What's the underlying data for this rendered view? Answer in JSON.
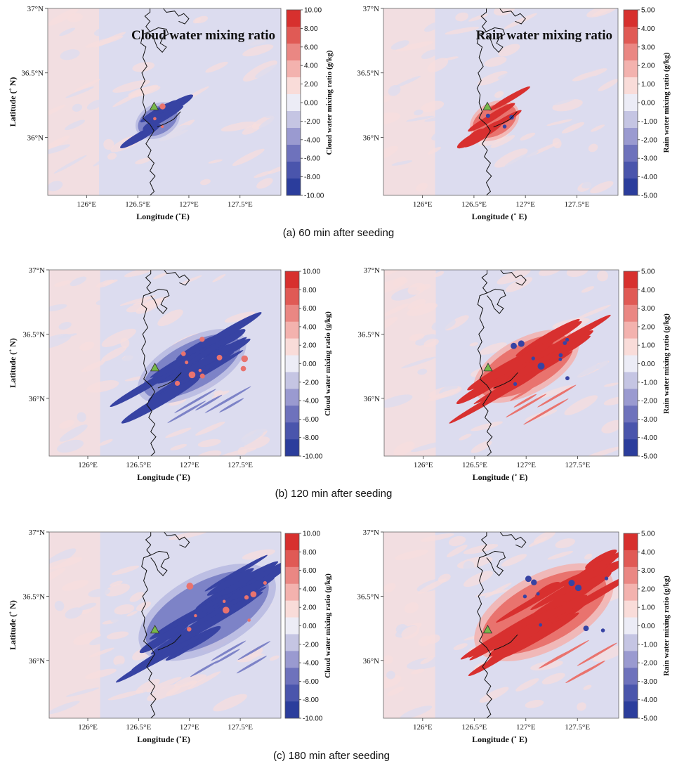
{
  "chart_data": [
    {
      "type": "heatmap",
      "panel": "a-left",
      "title": "Cloud water mixing ratio",
      "xlabel": "Longitude (˚E)",
      "ylabel": "Latitude (˚ N)",
      "colorbar_label": "Cloud water mixing ratio (g/kg)",
      "xlim": [
        125.62,
        127.9
      ],
      "ylim": [
        35.55,
        37.0
      ],
      "x_ticks": [
        126.0,
        126.5,
        127.0,
        127.5
      ],
      "x_tick_labels": [
        "126°E",
        "126.5°E",
        "127°E",
        "127.5°E"
      ],
      "y_ticks": [
        36.0,
        36.5,
        37.0
      ],
      "y_tick_labels": [
        "36°N",
        "36.5°N",
        "37°N"
      ],
      "colorbar_levels": [
        "10.00",
        "8.00",
        "6.00",
        "4.00",
        "2.00",
        "0.00",
        "-2.00",
        "-4.00",
        "-6.00",
        "-8.00",
        "-10.00"
      ],
      "seeding_site": {
        "lon": 126.66,
        "lat": 36.24
      },
      "anomaly_regions": [
        {
          "sign": "negative",
          "value": -8.0,
          "lon": [
            126.47,
            126.92
          ],
          "lat": [
            35.92,
            36.34
          ]
        }
      ]
    },
    {
      "type": "heatmap",
      "panel": "a-right",
      "title": "Rain water mixing ratio",
      "xlabel": "Longitude (˚ E)",
      "ylabel": "",
      "colorbar_label": "Rain water mixing ratio (g/kg)",
      "xlim": [
        125.62,
        127.9
      ],
      "ylim": [
        35.55,
        37.0
      ],
      "x_ticks": [
        126.0,
        126.5,
        127.0,
        127.5
      ],
      "x_tick_labels": [
        "126°E",
        "126.5°E",
        "127°E",
        "127.5°E"
      ],
      "y_ticks": [
        36.0,
        36.5,
        37.0
      ],
      "y_tick_labels": [
        "36°N",
        "36.5°N",
        "37°N"
      ],
      "colorbar_levels": [
        "5.00",
        "4.00",
        "3.00",
        "2.00",
        "1.00",
        "0.00",
        "-1.00",
        "-2.00",
        "-3.00",
        "-4.00",
        "-5.00"
      ],
      "seeding_site": {
        "lon": 126.63,
        "lat": 36.24
      },
      "anomaly_regions": [
        {
          "sign": "positive",
          "value": 4.0,
          "lon": [
            126.45,
            126.95
          ],
          "lat": [
            35.9,
            36.36
          ]
        }
      ]
    },
    {
      "type": "heatmap",
      "panel": "b-left",
      "title": "",
      "xlabel": "Longitude (˚E)",
      "ylabel": "Latitude (˚ N)",
      "colorbar_label": "Cloud water mixing ratio (g/kg)",
      "xlim": [
        125.62,
        127.9
      ],
      "ylim": [
        35.55,
        37.0
      ],
      "x_ticks": [
        126.0,
        126.5,
        127.0,
        127.5
      ],
      "x_tick_labels": [
        "126°E",
        "126.5°E",
        "127°E",
        "127.5°E"
      ],
      "y_ticks": [
        36.0,
        36.5,
        37.0
      ],
      "y_tick_labels": [
        "36°N",
        "36.5°N",
        "37°N"
      ],
      "colorbar_levels": [
        "10.00",
        "8.00",
        "6.00",
        "4.00",
        "2.00",
        "0.00",
        "-2.00",
        "-4.00",
        "-6.00",
        "-8.00",
        "-10.00"
      ],
      "seeding_site": {
        "lon": 126.66,
        "lat": 36.24
      },
      "anomaly_regions": [
        {
          "sign": "negative",
          "value": -8.0,
          "lon": [
            126.45,
            127.6
          ],
          "lat": [
            35.9,
            36.6
          ]
        }
      ]
    },
    {
      "type": "heatmap",
      "panel": "b-right",
      "title": "",
      "xlabel": "Longitude (˚ E)",
      "ylabel": "",
      "colorbar_label": "Rain water mixing ratio (g/kg)",
      "xlim": [
        125.62,
        127.9
      ],
      "ylim": [
        35.55,
        37.0
      ],
      "x_ticks": [
        126.0,
        126.5,
        127.0,
        127.5
      ],
      "x_tick_labels": [
        "126°E",
        "126.5°E",
        "127°E",
        "127.5°E"
      ],
      "y_ticks": [
        36.0,
        36.5,
        37.0
      ],
      "y_tick_labels": [
        "36°N",
        "36.5°N",
        "37°N"
      ],
      "colorbar_levels": [
        "5.00",
        "4.00",
        "3.00",
        "2.00",
        "1.00",
        "0.00",
        "-1.00",
        "-2.00",
        "-3.00",
        "-4.00",
        "-5.00"
      ],
      "seeding_site": {
        "lon": 126.63,
        "lat": 36.24
      },
      "anomaly_regions": [
        {
          "sign": "positive",
          "value": 4.0,
          "lon": [
            126.45,
            127.55
          ],
          "lat": [
            35.9,
            36.6
          ]
        }
      ]
    },
    {
      "type": "heatmap",
      "panel": "c-left",
      "title": "",
      "xlabel": "Longitude (˚E)",
      "ylabel": "Latitude (˚ N)",
      "colorbar_label": "Cloud water mixing ratio (g/kg)",
      "xlim": [
        125.62,
        127.9
      ],
      "ylim": [
        35.55,
        37.0
      ],
      "x_ticks": [
        126.0,
        126.5,
        127.0,
        127.5
      ],
      "x_tick_labels": [
        "126°E",
        "126.5°E",
        "127°E",
        "127.5°E"
      ],
      "y_ticks": [
        36.0,
        36.5,
        37.0
      ],
      "y_tick_labels": [
        "36°N",
        "36.5°N",
        "37°N"
      ],
      "colorbar_levels": [
        "10.00",
        "8.00",
        "6.00",
        "4.00",
        "2.00",
        "0.00",
        "-2.00",
        "-4.00",
        "-6.00",
        "-8.00",
        "-10.00"
      ],
      "seeding_site": {
        "lon": 126.66,
        "lat": 36.24
      },
      "anomaly_regions": [
        {
          "sign": "negative",
          "value": -8.0,
          "lon": [
            126.45,
            127.9
          ],
          "lat": [
            35.9,
            36.85
          ]
        }
      ]
    },
    {
      "type": "heatmap",
      "panel": "c-right",
      "title": "",
      "xlabel": "Longitude (˚ E)",
      "ylabel": "",
      "colorbar_label": "Rain water mixing ratio (g/kg)",
      "xlim": [
        125.62,
        127.9
      ],
      "ylim": [
        35.55,
        37.0
      ],
      "x_ticks": [
        126.0,
        126.5,
        127.0,
        127.5
      ],
      "x_tick_labels": [
        "126°E",
        "126.5°E",
        "127°E",
        "127.5°E"
      ],
      "y_ticks": [
        36.0,
        36.5,
        37.0
      ],
      "y_tick_labels": [
        "36°N",
        "36.5°N",
        "37°N"
      ],
      "colorbar_levels": [
        "5.00",
        "4.00",
        "3.00",
        "2.00",
        "1.00",
        "0.00",
        "-1.00",
        "-2.00",
        "-3.00",
        "-4.00",
        "-5.00"
      ],
      "seeding_site": {
        "lon": 126.63,
        "lat": 36.24
      },
      "anomaly_regions": [
        {
          "sign": "positive",
          "value": 4.0,
          "lon": [
            126.45,
            127.9
          ],
          "lat": [
            35.9,
            36.85
          ]
        }
      ]
    }
  ],
  "captions": [
    "(a) 60 min after seeding",
    "(b) 120 min after seeding",
    "(c) 180 min after seeding"
  ],
  "colors": {
    "background_pos": "#f7dedd",
    "background_neg": "#dcdcef",
    "colorbar": [
      "#d7302e",
      "#e05a55",
      "#ea8783",
      "#f3b2ae",
      "#f9dcd9",
      "#ececf6",
      "#c5c5e3",
      "#9a9ad0",
      "#6e72bc",
      "#4a55ac",
      "#2b3d9c"
    ],
    "seeding_marker": "#77b84a"
  }
}
